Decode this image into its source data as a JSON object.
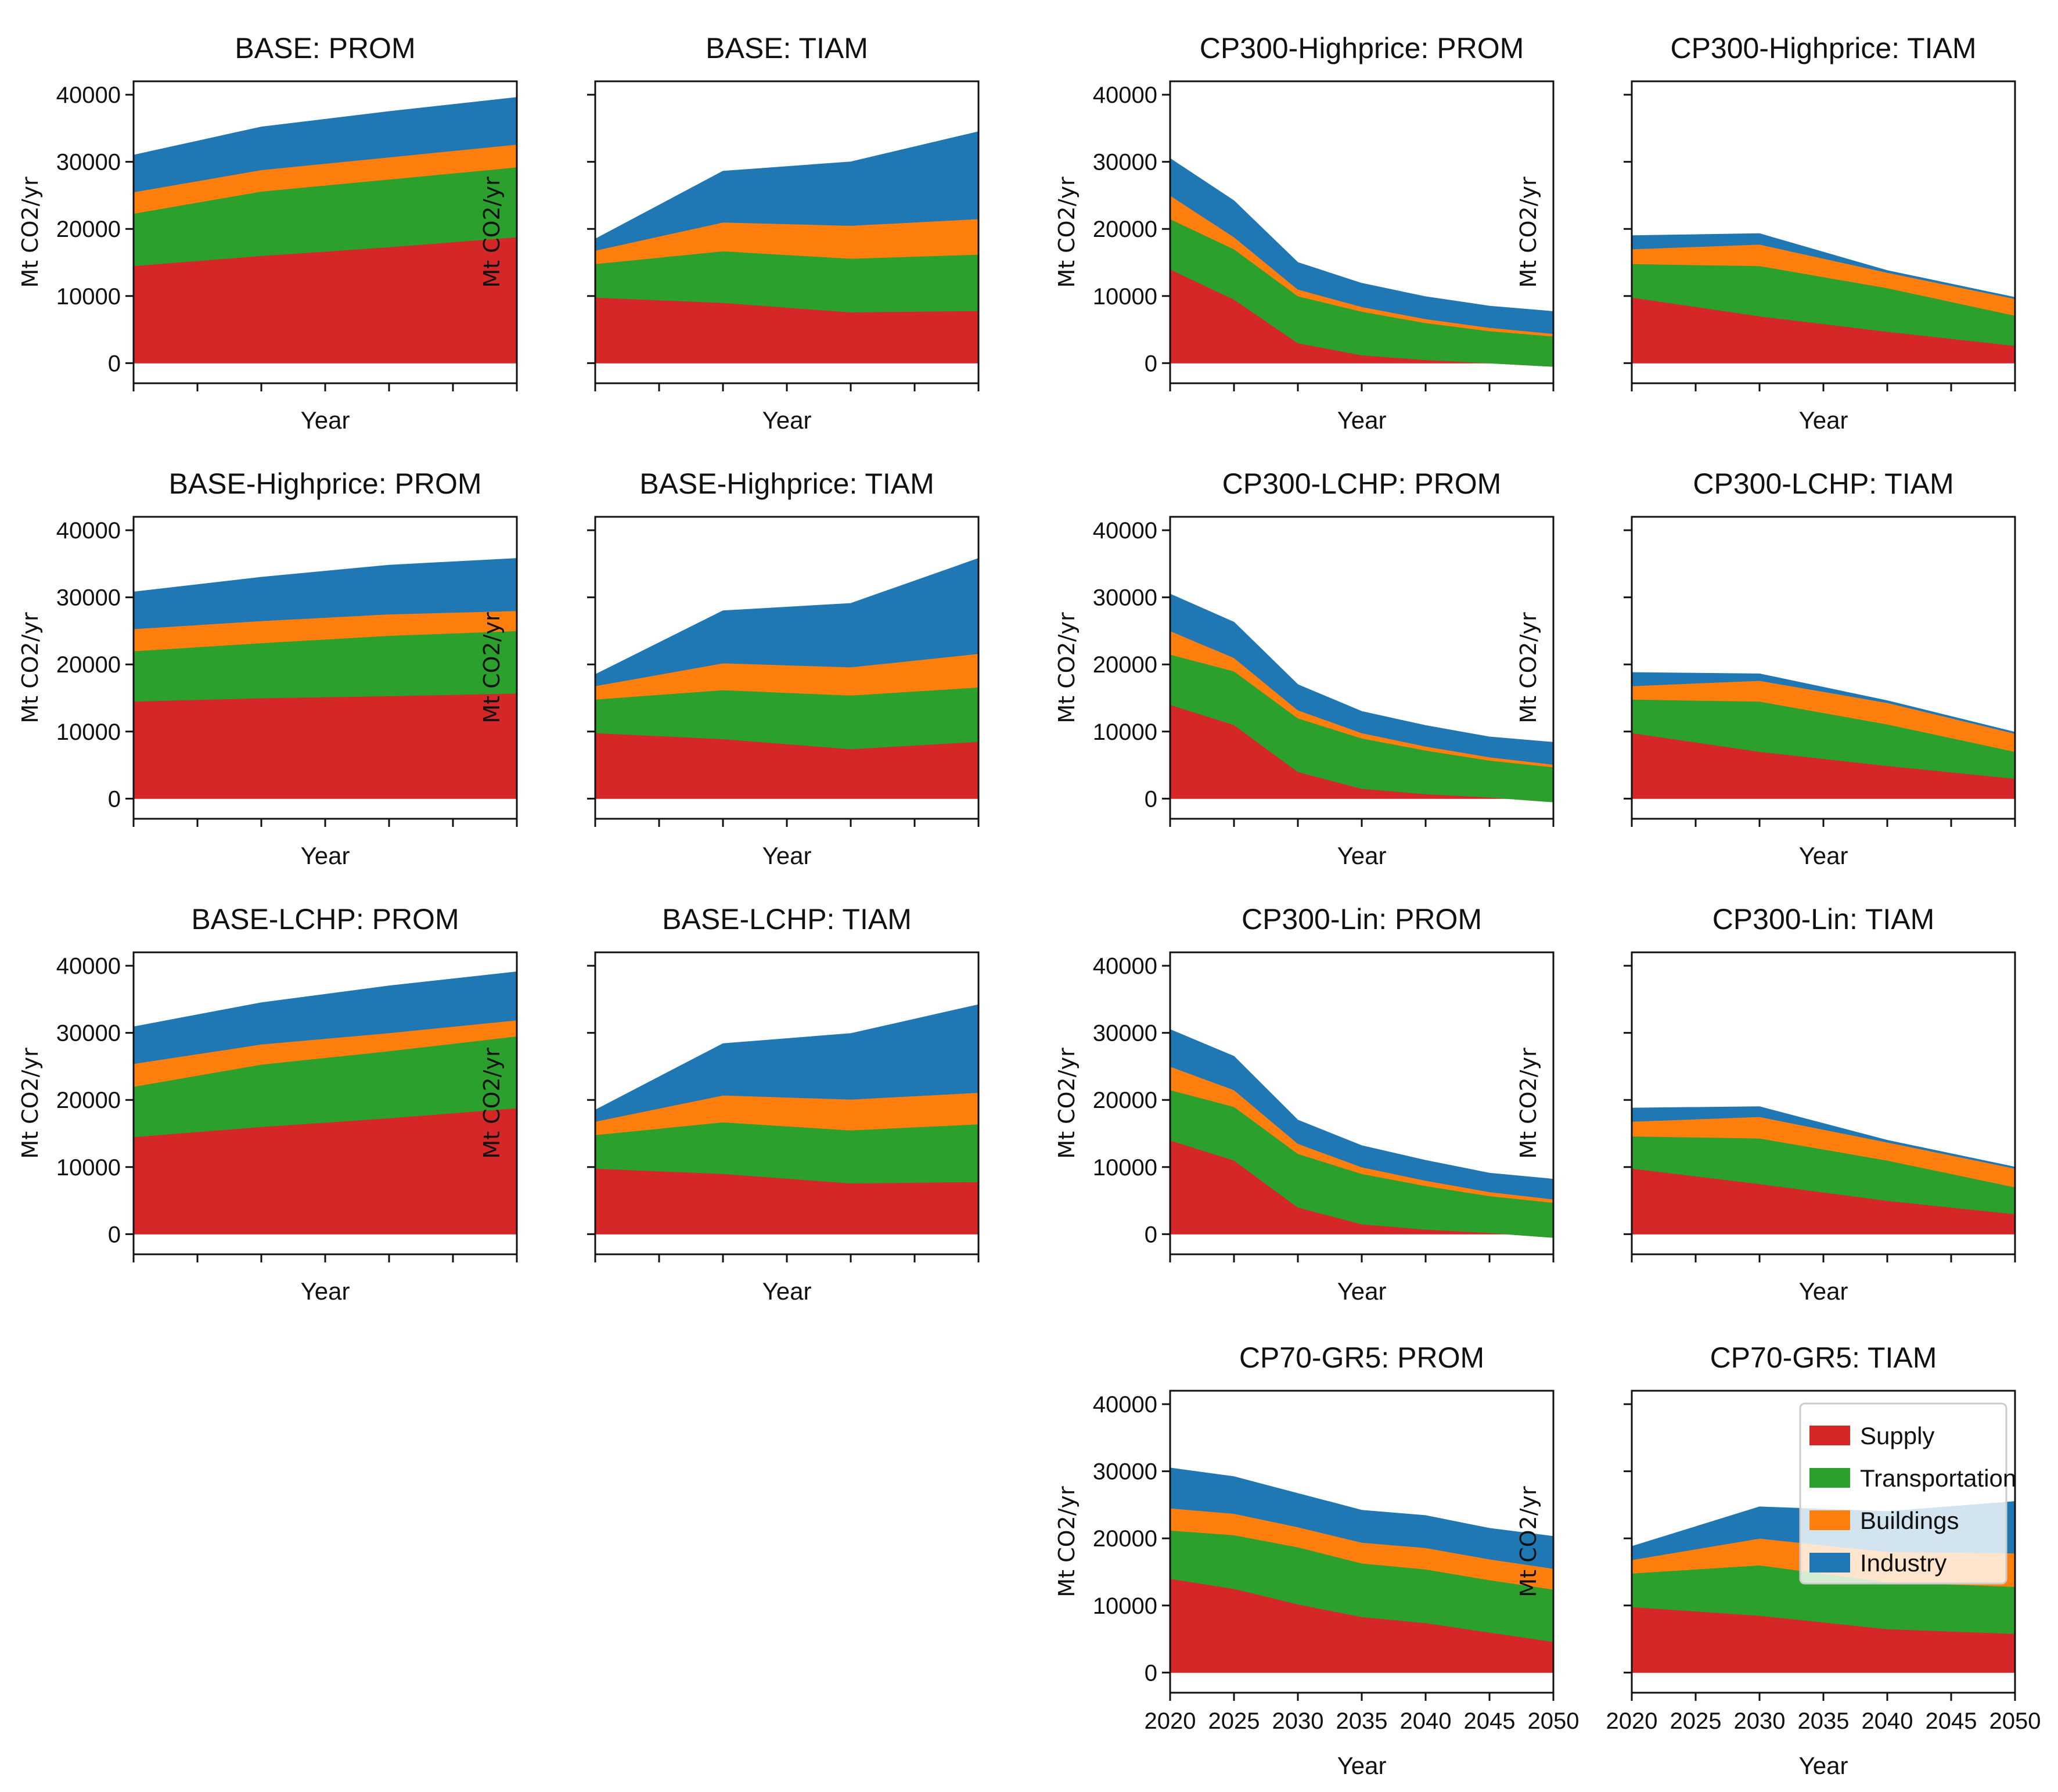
{
  "colors": {
    "Supply": "#d62728",
    "Transportation": "#2ca02c",
    "Buildings": "#ff7f0e",
    "Industry": "#1f77b4"
  },
  "chart_data": [
    {
      "type": "area",
      "title": "BASE: PROM",
      "xlabel": "Year",
      "ylabel": "Mt CO2/yr",
      "x": [
        2020,
        2030,
        2040,
        2050
      ],
      "ylim": [
        -3000,
        42000
      ],
      "yticks": [
        "0",
        "10000",
        "20000",
        "30000",
        "40000"
      ],
      "xticks": [
        "",
        "",
        "",
        "",
        "",
        "",
        ""
      ],
      "series": [
        {
          "name": "Supply",
          "values": [
            14500,
            16000,
            17300,
            18800
          ]
        },
        {
          "name": "Transportation",
          "values": [
            7800,
            9600,
            10100,
            10400
          ]
        },
        {
          "name": "Buildings",
          "values": [
            3200,
            3200,
            3300,
            3400
          ]
        },
        {
          "name": "Industry",
          "values": [
            5500,
            6400,
            6800,
            7000
          ]
        }
      ]
    },
    {
      "type": "area",
      "title": "BASE: TIAM",
      "xlabel": "Year",
      "ylabel": "Mt CO2/yr",
      "x": [
        2020,
        2030,
        2040,
        2050
      ],
      "ylim": [
        -3000,
        42000
      ],
      "yticks": [
        "",
        "",
        "",
        "",
        ""
      ],
      "xticks": [
        "",
        "",
        "",
        "",
        "",
        "",
        ""
      ],
      "series": [
        {
          "name": "Supply",
          "values": [
            9800,
            9000,
            7600,
            7800
          ]
        },
        {
          "name": "Transportation",
          "values": [
            5000,
            7700,
            8000,
            8400
          ]
        },
        {
          "name": "Buildings",
          "values": [
            2000,
            4300,
            4900,
            5300
          ]
        },
        {
          "name": "Industry",
          "values": [
            1700,
            7600,
            9500,
            13000
          ]
        }
      ]
    },
    {
      "type": "area",
      "title": "BASE-Highprice: PROM",
      "xlabel": "Year",
      "ylabel": "Mt CO2/yr",
      "x": [
        2020,
        2030,
        2040,
        2050
      ],
      "ylim": [
        -3000,
        42000
      ],
      "yticks": [
        "0",
        "10000",
        "20000",
        "30000",
        "40000"
      ],
      "xticks": [
        "",
        "",
        "",
        "",
        "",
        "",
        ""
      ],
      "series": [
        {
          "name": "Supply",
          "values": [
            14500,
            15000,
            15300,
            15700
          ]
        },
        {
          "name": "Transportation",
          "values": [
            7500,
            8200,
            9000,
            9300
          ]
        },
        {
          "name": "Buildings",
          "values": [
            3300,
            3300,
            3200,
            3000
          ]
        },
        {
          "name": "Industry",
          "values": [
            5500,
            6500,
            7300,
            7800
          ]
        }
      ]
    },
    {
      "type": "area",
      "title": "BASE-Highprice: TIAM",
      "xlabel": "Year",
      "ylabel": "Mt CO2/yr",
      "x": [
        2020,
        2030,
        2040,
        2050
      ],
      "ylim": [
        -3000,
        42000
      ],
      "yticks": [
        "",
        "",
        "",
        "",
        ""
      ],
      "xticks": [
        "",
        "",
        "",
        "",
        "",
        "",
        ""
      ],
      "series": [
        {
          "name": "Supply",
          "values": [
            9800,
            8900,
            7400,
            8500
          ]
        },
        {
          "name": "Transportation",
          "values": [
            5000,
            7300,
            8000,
            8100
          ]
        },
        {
          "name": "Buildings",
          "values": [
            2000,
            4000,
            4200,
            5000
          ]
        },
        {
          "name": "Industry",
          "values": [
            1700,
            7800,
            9500,
            14200
          ]
        }
      ]
    },
    {
      "type": "area",
      "title": "BASE-LCHP: PROM",
      "xlabel": "Year",
      "ylabel": "Mt CO2/yr",
      "x": [
        2020,
        2030,
        2040,
        2050
      ],
      "ylim": [
        -3000,
        42000
      ],
      "yticks": [
        "0",
        "10000",
        "20000",
        "30000",
        "40000"
      ],
      "xticks": [
        "",
        "",
        "",
        "",
        "",
        "",
        ""
      ],
      "series": [
        {
          "name": "Supply",
          "values": [
            14500,
            16000,
            17300,
            18800
          ]
        },
        {
          "name": "Transportation",
          "values": [
            7500,
            9300,
            10000,
            10700
          ]
        },
        {
          "name": "Buildings",
          "values": [
            3400,
            3000,
            2700,
            2400
          ]
        },
        {
          "name": "Industry",
          "values": [
            5500,
            6200,
            7000,
            7200
          ]
        }
      ]
    },
    {
      "type": "area",
      "title": "BASE-LCHP: TIAM",
      "xlabel": "Year",
      "ylabel": "Mt CO2/yr",
      "x": [
        2020,
        2030,
        2040,
        2050
      ],
      "ylim": [
        -3000,
        42000
      ],
      "yticks": [
        "",
        "",
        "",
        "",
        ""
      ],
      "xticks": [
        "",
        "",
        "",
        "",
        "",
        "",
        ""
      ],
      "series": [
        {
          "name": "Supply",
          "values": [
            9800,
            9000,
            7600,
            7800
          ]
        },
        {
          "name": "Transportation",
          "values": [
            5000,
            7700,
            7900,
            8600
          ]
        },
        {
          "name": "Buildings",
          "values": [
            2000,
            4000,
            4600,
            4700
          ]
        },
        {
          "name": "Industry",
          "values": [
            1700,
            7700,
            9800,
            13100
          ]
        }
      ]
    },
    {
      "type": "area",
      "title": "CP300-Highprice: PROM",
      "xlabel": "Year",
      "ylabel": "Mt CO2/yr",
      "x": [
        2020,
        2025,
        2030,
        2035,
        2040,
        2045,
        2050
      ],
      "ylim": [
        -3000,
        42000
      ],
      "yticks": [
        "0",
        "10000",
        "20000",
        "30000",
        "40000"
      ],
      "xticks": [
        "",
        "",
        "",
        "",
        "",
        "",
        ""
      ],
      "series": [
        {
          "name": "Supply",
          "values": [
            14000,
            9500,
            3000,
            1200,
            500,
            0,
            -500
          ]
        },
        {
          "name": "Transportation",
          "values": [
            7500,
            7500,
            7000,
            6500,
            5500,
            4800,
            4500
          ]
        },
        {
          "name": "Buildings",
          "values": [
            3500,
            1800,
            1000,
            700,
            600,
            500,
            400
          ]
        },
        {
          "name": "Industry",
          "values": [
            5500,
            5400,
            4000,
            3500,
            3300,
            3200,
            3300
          ]
        }
      ]
    },
    {
      "type": "area",
      "title": "CP300-Highprice: TIAM",
      "xlabel": "Year",
      "ylabel": "Mt CO2/yr",
      "x": [
        2020,
        2030,
        2040,
        2050
      ],
      "ylim": [
        -3000,
        42000
      ],
      "yticks": [
        "",
        "",
        "",
        "",
        ""
      ],
      "xticks": [
        "",
        "",
        "",
        "",
        "",
        "",
        ""
      ],
      "series": [
        {
          "name": "Supply",
          "values": [
            9800,
            7000,
            4700,
            2600
          ]
        },
        {
          "name": "Transportation",
          "values": [
            5000,
            7500,
            6500,
            4500
          ]
        },
        {
          "name": "Buildings",
          "values": [
            2200,
            3200,
            2300,
            2500
          ]
        },
        {
          "name": "Industry",
          "values": [
            2000,
            1600,
            300,
            200
          ]
        }
      ]
    },
    {
      "type": "area",
      "title": "CP300-LCHP: PROM",
      "xlabel": "Year",
      "ylabel": "Mt CO2/yr",
      "x": [
        2020,
        2025,
        2030,
        2035,
        2040,
        2045,
        2050
      ],
      "ylim": [
        -3000,
        42000
      ],
      "yticks": [
        "0",
        "10000",
        "20000",
        "30000",
        "40000"
      ],
      "xticks": [
        "",
        "",
        "",
        "",
        "",
        "",
        ""
      ],
      "series": [
        {
          "name": "Supply",
          "values": [
            14000,
            11000,
            4000,
            1500,
            700,
            200,
            -500
          ]
        },
        {
          "name": "Transportation",
          "values": [
            7500,
            8000,
            8000,
            7500,
            6500,
            5500,
            5200
          ]
        },
        {
          "name": "Buildings",
          "values": [
            3500,
            2000,
            1200,
            800,
            600,
            500,
            400
          ]
        },
        {
          "name": "Industry",
          "values": [
            5500,
            5300,
            3800,
            3200,
            3100,
            3000,
            3300
          ]
        }
      ]
    },
    {
      "type": "area",
      "title": "CP300-LCHP: TIAM",
      "xlabel": "Year",
      "ylabel": "Mt CO2/yr",
      "x": [
        2020,
        2030,
        2040,
        2050
      ],
      "ylim": [
        -3000,
        42000
      ],
      "yticks": [
        "",
        "",
        "",
        "",
        ""
      ],
      "xticks": [
        "",
        "",
        "",
        "",
        "",
        "",
        ""
      ],
      "series": [
        {
          "name": "Supply",
          "values": [
            9800,
            7000,
            4900,
            3000
          ]
        },
        {
          "name": "Transportation",
          "values": [
            5000,
            7500,
            6200,
            4000
          ]
        },
        {
          "name": "Buildings",
          "values": [
            2000,
            3100,
            3200,
            2700
          ]
        },
        {
          "name": "Industry",
          "values": [
            2000,
            1000,
            300,
            200
          ]
        }
      ]
    },
    {
      "type": "area",
      "title": "CP300-Lin: PROM",
      "xlabel": "Year",
      "ylabel": "Mt CO2/yr",
      "x": [
        2020,
        2025,
        2030,
        2035,
        2040,
        2045,
        2050
      ],
      "ylim": [
        -3000,
        42000
      ],
      "yticks": [
        "0",
        "10000",
        "20000",
        "30000",
        "40000"
      ],
      "xticks": [
        "",
        "",
        "",
        "",
        "",
        "",
        ""
      ],
      "series": [
        {
          "name": "Supply",
          "values": [
            14000,
            11000,
            4000,
            1500,
            700,
            200,
            -500
          ]
        },
        {
          "name": "Transportation",
          "values": [
            7500,
            8000,
            8000,
            7500,
            6500,
            5500,
            5200
          ]
        },
        {
          "name": "Buildings",
          "values": [
            3500,
            2500,
            1500,
            1000,
            800,
            600,
            500
          ]
        },
        {
          "name": "Industry",
          "values": [
            5500,
            5000,
            3500,
            3200,
            3000,
            2800,
            3000
          ]
        }
      ]
    },
    {
      "type": "area",
      "title": "CP300-Lin: TIAM",
      "xlabel": "Year",
      "ylabel": "Mt CO2/yr",
      "x": [
        2020,
        2030,
        2040,
        2050
      ],
      "ylim": [
        -3000,
        42000
      ],
      "yticks": [
        "",
        "",
        "",
        "",
        ""
      ],
      "xticks": [
        "",
        "",
        "",
        "",
        "",
        "",
        ""
      ],
      "series": [
        {
          "name": "Supply",
          "values": [
            9800,
            7500,
            5000,
            3000
          ]
        },
        {
          "name": "Transportation",
          "values": [
            4800,
            6800,
            6000,
            4000
          ]
        },
        {
          "name": "Buildings",
          "values": [
            2200,
            3200,
            2700,
            2800
          ]
        },
        {
          "name": "Industry",
          "values": [
            2000,
            1500,
            300,
            200
          ]
        }
      ]
    },
    {
      "type": "area",
      "title": "CP70-GR5: PROM",
      "xlabel": "Year",
      "ylabel": "Mt CO2/yr",
      "x": [
        2020,
        2025,
        2030,
        2035,
        2040,
        2045,
        2050
      ],
      "ylim": [
        -3000,
        42000
      ],
      "yticks": [
        "0",
        "10000",
        "20000",
        "30000",
        "40000"
      ],
      "xticks": [
        "2020",
        "2025",
        "2030",
        "2035",
        "2040",
        "2045",
        "2050"
      ],
      "series": [
        {
          "name": "Supply",
          "values": [
            14000,
            12500,
            10200,
            8300,
            7400,
            6000,
            4600
          ]
        },
        {
          "name": "Transportation",
          "values": [
            7200,
            8000,
            8500,
            8000,
            8000,
            7800,
            7800
          ]
        },
        {
          "name": "Buildings",
          "values": [
            3300,
            3200,
            3000,
            3100,
            3200,
            3100,
            3100
          ]
        },
        {
          "name": "Industry",
          "values": [
            6000,
            5500,
            5000,
            4800,
            4800,
            4600,
            4800
          ]
        }
      ]
    },
    {
      "type": "area",
      "title": "CP70-GR5: TIAM",
      "xlabel": "Year",
      "ylabel": "Mt CO2/yr",
      "x": [
        2020,
        2030,
        2040,
        2050
      ],
      "ylim": [
        -3000,
        42000
      ],
      "yticks": [
        "",
        "",
        "",
        "",
        ""
      ],
      "xticks": [
        "2020",
        "2025",
        "2030",
        "2035",
        "2040",
        "2045",
        "2050"
      ],
      "series": [
        {
          "name": "Supply",
          "values": [
            9800,
            8500,
            6500,
            5800
          ]
        },
        {
          "name": "Transportation",
          "values": [
            5000,
            7500,
            7000,
            7000
          ]
        },
        {
          "name": "Buildings",
          "values": [
            2000,
            4000,
            4500,
            5000
          ]
        },
        {
          "name": "Industry",
          "values": [
            2000,
            4700,
            6000,
            7700
          ]
        }
      ]
    }
  ],
  "legend": {
    "position": "upper-right of CP70-GR5: TIAM",
    "entries": [
      "Supply",
      "Transportation",
      "Buildings",
      "Industry"
    ]
  }
}
